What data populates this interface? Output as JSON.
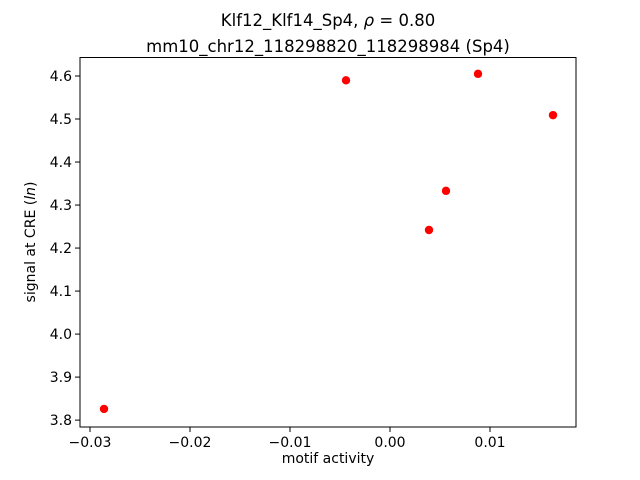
{
  "figure": {
    "title_line1": {
      "pre": "Klf12_Klf14_Sp4, ",
      "rho": "ρ",
      "post": " = 0.80"
    },
    "title_line2": "mm10_chr12_118298820_118298984 (Sp4)",
    "xlabel": "motif activity",
    "ylabel": {
      "pre": "signal at CRE (",
      "italic": "ln",
      "post": ")"
    }
  },
  "chart_data": {
    "type": "scatter",
    "title": "Klf12_Klf14_Sp4, ρ = 0.80\nmm10_chr12_118298820_118298984 (Sp4)",
    "xlabel": "motif activity",
    "ylabel": "signal at CRE (ln)",
    "marker": "circle",
    "marker_color": "#ff0000",
    "marker_radius_px": 4.2,
    "axis_color": "#000000",
    "background_color": "#ffffff",
    "grid": false,
    "legend": null,
    "xlim": [
      -0.031,
      0.0186
    ],
    "ylim": [
      3.784,
      4.643
    ],
    "xticks": [
      -0.03,
      -0.02,
      -0.01,
      0.0,
      0.01
    ],
    "xtick_labels": [
      "−0.03",
      "−0.02",
      "−0.01",
      "0.00",
      "0.01"
    ],
    "yticks": [
      3.8,
      3.9,
      4.0,
      4.1,
      4.2,
      4.3,
      4.4,
      4.5,
      4.6
    ],
    "ytick_labels": [
      "3.8",
      "3.9",
      "4.0",
      "4.1",
      "4.2",
      "4.3",
      "4.4",
      "4.5",
      "4.6"
    ],
    "points": [
      {
        "x": -0.0286,
        "y": 3.826
      },
      {
        "x": -0.0044,
        "y": 4.59
      },
      {
        "x": 0.0039,
        "y": 4.242
      },
      {
        "x": 0.0056,
        "y": 4.333
      },
      {
        "x": 0.0088,
        "y": 4.605
      },
      {
        "x": 0.0163,
        "y": 4.509
      }
    ]
  }
}
